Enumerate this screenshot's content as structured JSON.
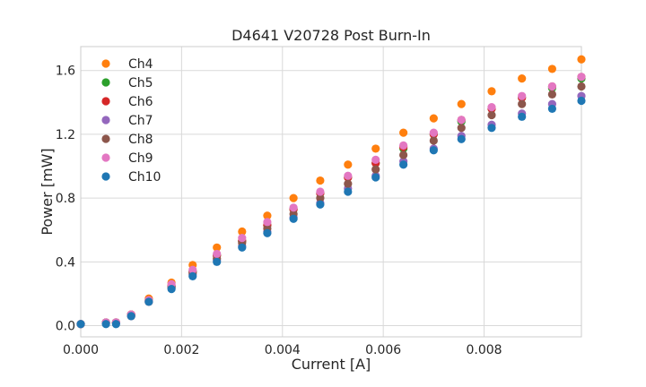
{
  "chart_data": {
    "type": "scatter",
    "title": "D4641 V20728 Post Burn-In",
    "xlabel": "Current [A]",
    "ylabel": "Power [mW]",
    "xlim": [
      0.0,
      0.00993
    ],
    "ylim": [
      -0.07,
      1.75
    ],
    "xticks": [
      0.0,
      0.002,
      0.004,
      0.006,
      0.008
    ],
    "xtick_labels": [
      "0.000",
      "0.002",
      "0.004",
      "0.006",
      "0.008"
    ],
    "yticks": [
      0.0,
      0.4,
      0.8,
      1.2,
      1.6
    ],
    "ytick_labels": [
      "0.0",
      "0.4",
      "0.8",
      "1.2",
      "1.6"
    ],
    "grid": true,
    "legend_position": "upper-left",
    "x": [
      0.0,
      0.0005,
      0.0007,
      0.001,
      0.00135,
      0.0018,
      0.00222,
      0.0027,
      0.0032,
      0.0037,
      0.00422,
      0.00475,
      0.0053,
      0.00585,
      0.0064,
      0.007,
      0.00755,
      0.00815,
      0.00875,
      0.00935,
      0.00993
    ],
    "series": [
      {
        "name": "Ch4",
        "color": "#ff7f0e",
        "values": [
          0.01,
          0.02,
          0.02,
          0.07,
          0.17,
          0.27,
          0.38,
          0.49,
          0.59,
          0.69,
          0.8,
          0.91,
          1.01,
          1.11,
          1.21,
          1.3,
          1.39,
          1.47,
          1.55,
          1.61,
          1.67
        ]
      },
      {
        "name": "Ch5",
        "color": "#2ca02c",
        "values": [
          0.01,
          0.02,
          0.02,
          0.07,
          0.16,
          0.25,
          0.34,
          0.44,
          0.53,
          0.63,
          0.73,
          0.83,
          0.93,
          1.02,
          1.11,
          1.2,
          1.28,
          1.36,
          1.43,
          1.49,
          1.55
        ]
      },
      {
        "name": "Ch6",
        "color": "#d62728",
        "values": [
          0.01,
          0.02,
          0.02,
          0.07,
          0.16,
          0.25,
          0.34,
          0.44,
          0.53,
          0.63,
          0.73,
          0.83,
          0.93,
          1.02,
          1.12,
          1.2,
          1.29,
          1.36,
          1.43,
          1.5,
          1.56
        ]
      },
      {
        "name": "Ch7",
        "color": "#9467bd",
        "values": [
          0.01,
          0.02,
          0.02,
          0.06,
          0.15,
          0.24,
          0.32,
          0.41,
          0.5,
          0.59,
          0.68,
          0.77,
          0.86,
          0.94,
          1.03,
          1.11,
          1.19,
          1.26,
          1.33,
          1.39,
          1.44
        ]
      },
      {
        "name": "Ch8",
        "color": "#8c564b",
        "values": [
          0.01,
          0.02,
          0.02,
          0.06,
          0.15,
          0.24,
          0.33,
          0.42,
          0.52,
          0.61,
          0.7,
          0.8,
          0.89,
          0.98,
          1.07,
          1.16,
          1.24,
          1.32,
          1.39,
          1.45,
          1.5
        ]
      },
      {
        "name": "Ch9",
        "color": "#e377c2",
        "values": [
          0.01,
          0.02,
          0.02,
          0.07,
          0.16,
          0.26,
          0.35,
          0.45,
          0.55,
          0.65,
          0.74,
          0.84,
          0.94,
          1.04,
          1.13,
          1.21,
          1.29,
          1.37,
          1.44,
          1.5,
          1.56
        ]
      },
      {
        "name": "Ch10",
        "color": "#1f77b4",
        "values": [
          0.01,
          0.01,
          0.01,
          0.06,
          0.15,
          0.23,
          0.31,
          0.4,
          0.49,
          0.58,
          0.67,
          0.76,
          0.84,
          0.93,
          1.01,
          1.1,
          1.17,
          1.24,
          1.31,
          1.36,
          1.41
        ]
      }
    ]
  }
}
